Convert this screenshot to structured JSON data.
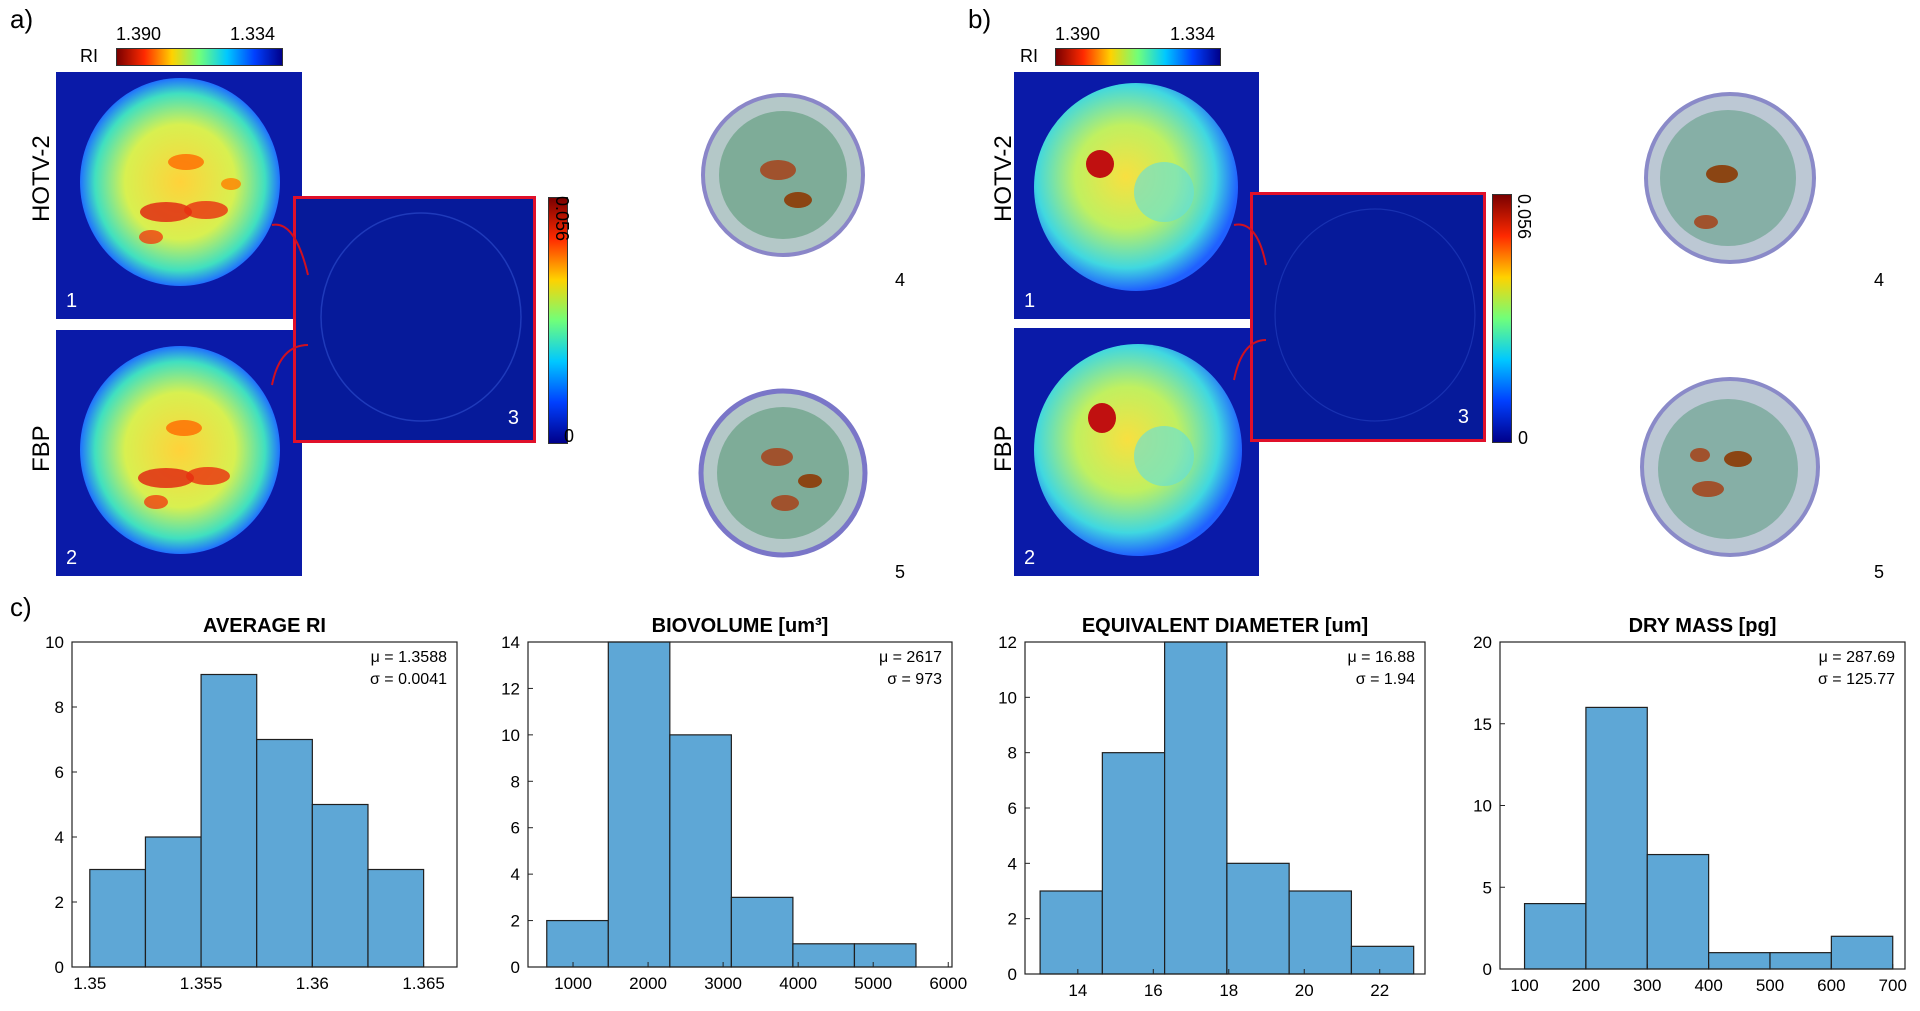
{
  "panel_a": {
    "letter": "a)",
    "colorbar": {
      "label": "RI",
      "left_value": "1.390",
      "right_value": "1.334"
    },
    "row_labels": [
      "HOTV-2",
      "FBP"
    ],
    "diff_colorbar": {
      "max": "0.056",
      "min": "0"
    },
    "numbers": [
      "1",
      "2",
      "3",
      "4",
      "5"
    ]
  },
  "panel_b": {
    "letter": "b)",
    "colorbar": {
      "label": "RI",
      "left_value": "1.390",
      "right_value": "1.334"
    },
    "row_labels": [
      "HOTV-2",
      "FBP"
    ],
    "diff_colorbar": {
      "max": "0.056",
      "min": "0"
    },
    "numbers": [
      "1",
      "2",
      "3",
      "4",
      "5"
    ]
  },
  "panel_c": {
    "letter": "c)"
  },
  "chart_data": [
    {
      "type": "bar",
      "title": "AVERAGE RI",
      "categories": [
        "1.3500-1.3525",
        "1.3525-1.3550",
        "1.3550-1.3575",
        "1.3575-1.3600",
        "1.3600-1.3625",
        "1.3625-1.3650"
      ],
      "bin_edges": [
        1.35,
        1.3525,
        1.355,
        1.3575,
        1.36,
        1.3625,
        1.365
      ],
      "values": [
        3,
        4,
        9,
        7,
        5,
        3
      ],
      "xlim": [
        1.3492,
        1.3665
      ],
      "ylim": [
        0,
        10
      ],
      "xticks": [
        1.35,
        1.355,
        1.36,
        1.365
      ],
      "xtick_labels": [
        "1.35",
        "1.355",
        "1.36",
        "1.365"
      ],
      "yticks": [
        0,
        2,
        4,
        6,
        8,
        10
      ],
      "stats": [
        "μ = 1.3588",
        "σ = 0.0041"
      ]
    },
    {
      "type": "bar",
      "title": "BIOVOLUME [um³]",
      "categories": [
        "650-1470",
        "1470-2290",
        "2290-3110",
        "3110-3930",
        "3930-4750",
        "4750-5570"
      ],
      "bin_edges": [
        650,
        1470,
        2290,
        3110,
        3930,
        4750,
        5570
      ],
      "values": [
        2,
        14,
        10,
        3,
        1,
        1
      ],
      "xlim": [
        400,
        6050
      ],
      "ylim": [
        0,
        14
      ],
      "xticks": [
        1000,
        2000,
        3000,
        4000,
        5000,
        6000
      ],
      "xtick_labels": [
        "1000",
        "2000",
        "3000",
        "4000",
        "5000",
        "6000"
      ],
      "yticks": [
        0,
        2,
        4,
        6,
        8,
        10,
        12,
        14
      ],
      "stats": [
        "μ = 2617",
        "σ = 973"
      ]
    },
    {
      "type": "bar",
      "title": "EQUIVALENT DIAMETER [um]",
      "categories": [
        "13.0-14.7",
        "14.7-16.3",
        "16.3-18.0",
        "18.0-19.6",
        "19.6-21.3",
        "21.3-22.9"
      ],
      "bin_edges": [
        13.0,
        14.65,
        16.3,
        17.95,
        19.6,
        21.25,
        22.9
      ],
      "values": [
        3,
        8,
        12,
        4,
        3,
        1
      ],
      "xlim": [
        12.6,
        23.2
      ],
      "ylim": [
        0,
        12
      ],
      "xticks": [
        14,
        16,
        18,
        20,
        22
      ],
      "xtick_labels": [
        "14",
        "16",
        "18",
        "20",
        "22"
      ],
      "yticks": [
        0,
        2,
        4,
        6,
        8,
        10,
        12
      ],
      "stats": [
        "μ = 16.88",
        "σ = 1.94"
      ]
    },
    {
      "type": "bar",
      "title": "DRY MASS [pg]",
      "categories": [
        "100-200",
        "200-300",
        "300-400",
        "400-500",
        "500-600",
        "600-700"
      ],
      "bin_edges": [
        100,
        200,
        300,
        400,
        500,
        600,
        700
      ],
      "values": [
        4,
        16,
        7,
        1,
        1,
        2
      ],
      "xlim": [
        60,
        720
      ],
      "ylim": [
        0,
        20
      ],
      "xticks": [
        100,
        200,
        300,
        400,
        500,
        600,
        700
      ],
      "xtick_labels": [
        "100",
        "200",
        "300",
        "400",
        "500",
        "600",
        "700"
      ],
      "yticks": [
        0,
        5,
        10,
        15,
        20
      ],
      "stats": [
        "μ = 287.69",
        "σ = 125.77"
      ]
    }
  ],
  "colors": {
    "bar_fill": "#5ea7d6",
    "bar_edge": "#1f1f1f",
    "diff_border": "#e0102a",
    "map_bg": "#0a1aa8"
  }
}
